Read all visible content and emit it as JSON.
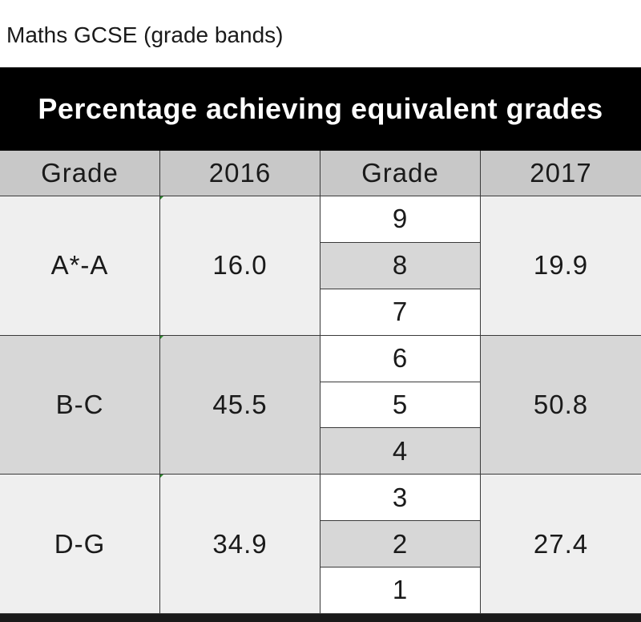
{
  "caption": "Maths GCSE (grade bands)",
  "chart_data": {
    "type": "table",
    "title": "Percentage achieving equivalent grades",
    "columns": [
      "Grade",
      "2016",
      "Grade",
      "2017"
    ],
    "rows": [
      {
        "old_grade": "A*-A",
        "value_2016": "16.0",
        "new_grades": [
          "9",
          "8",
          "7"
        ],
        "value_2017": "19.9"
      },
      {
        "old_grade": "B-C",
        "value_2016": "45.5",
        "new_grades": [
          "6",
          "5",
          "4"
        ],
        "value_2017": "50.8"
      },
      {
        "old_grade": "D-G",
        "value_2016": "34.9",
        "new_grades": [
          "3",
          "2",
          "1"
        ],
        "value_2017": "27.4"
      }
    ]
  }
}
